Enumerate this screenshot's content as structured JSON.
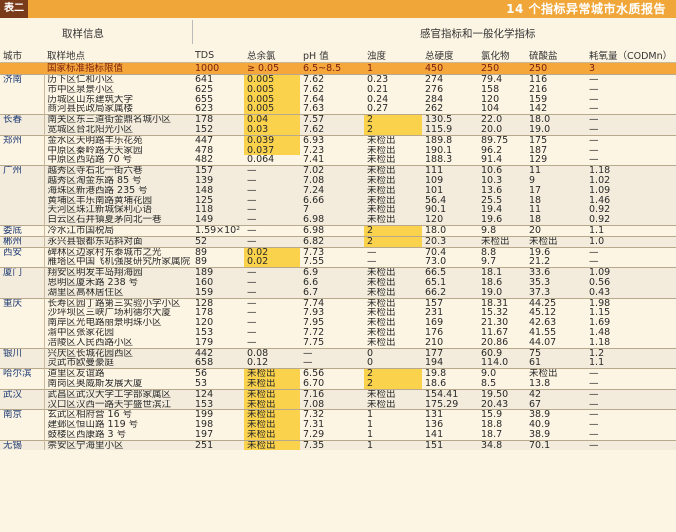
{
  "header": {
    "tag": "表二",
    "title": "14 个指标异常城市水质报告"
  },
  "groups": {
    "sampling": "取样信息",
    "indicators": "感官指标和一般化学指标"
  },
  "columns": [
    "城市",
    "取样地点",
    "TDS",
    "总余氯",
    "pH 值",
    "浊度",
    "总硬度",
    "氯化物",
    "硫酸盐",
    "耗氧量（CODMn）"
  ],
  "standard": [
    "",
    "国家标准指标限值",
    "1000",
    "≥ 0.05",
    "6.5~8.5",
    "1",
    "450",
    "250",
    "250",
    "3"
  ],
  "rows": [
    [
      "济南",
      "历下区仁和小区",
      "641",
      "0.005",
      "7.62",
      "0.23",
      "274",
      "79.4",
      "116",
      "—"
    ],
    [
      "",
      "市中区泉景小区",
      "625",
      "0.005",
      "7.62",
      "0.21",
      "276",
      "158",
      "216",
      "—"
    ],
    [
      "",
      "历城区山东建筑大学",
      "655",
      "0.005",
      "7.64",
      "0.24",
      "284",
      "120",
      "159",
      "—"
    ],
    [
      "",
      "商河县民政局家属楼",
      "623",
      "0.005",
      "7.63",
      "0.27",
      "262",
      "104",
      "142",
      "—"
    ],
    [
      "长春",
      "南关区东三道街金鼎名城小区",
      "178",
      "0.04",
      "7.57",
      "2",
      "130.5",
      "22.0",
      "18.0",
      "—"
    ],
    [
      "",
      "宽城区台北阳光小区",
      "152",
      "0.03",
      "7.62",
      "2",
      "115.9",
      "20.0",
      "19.0",
      "—"
    ],
    [
      "郑州",
      "金水区天明路丰乐花苑",
      "447",
      "0.039",
      "6.93",
      "未检出",
      "189.8",
      "89.75",
      "175",
      "—"
    ],
    [
      "",
      "中原区秦岭路天天家园",
      "478",
      "0.037",
      "7.23",
      "未检出",
      "190.1",
      "96.2",
      "187",
      "—"
    ],
    [
      "",
      "中原区西站路 70 号",
      "482",
      "0.064",
      "7.41",
      "未检出",
      "188.3",
      "91.4",
      "129",
      "—"
    ],
    [
      "广州",
      "越秀区寺右北一街六巷",
      "157",
      "—",
      "7.02",
      "未检出",
      "111",
      "10.6",
      "11",
      "1.18"
    ],
    [
      "",
      "越秀区淘金东路 85 号",
      "139",
      "—",
      "7.08",
      "未检出",
      "109",
      "10.3",
      "9",
      "1.02"
    ],
    [
      "",
      "海珠区新港西路 235 号",
      "148",
      "—",
      "7.24",
      "未检出",
      "101",
      "13.6",
      "17",
      "1.09"
    ],
    [
      "",
      "黄埔区丰乐南路黄埔花园",
      "125",
      "—",
      "6.66",
      "未检出",
      "56.4",
      "25.5",
      "18",
      "1.46"
    ],
    [
      "",
      "天河区珠江新城保利心语",
      "118",
      "—",
      "7",
      "未检出",
      "90.1",
      "19.4",
      "11",
      "0.92"
    ],
    [
      "",
      "白云区石井镇夏茅向北一巷",
      "149",
      "—",
      "6.98",
      "未检出",
      "120",
      "19.6",
      "18",
      "0.92"
    ],
    [
      "娄底",
      "冷水江市国税局",
      "1.59×10²",
      "—",
      "6.98",
      "2",
      "18.0",
      "9.8",
      "20",
      "1.1"
    ],
    [
      "郴州",
      "永兴县银都东站斜对面",
      "52",
      "—",
      "6.82",
      "2",
      "20.3",
      "未检出",
      "未检出",
      "1.0"
    ],
    [
      "西安",
      "碑林区边家村东泰城市之光",
      "89",
      "0.02",
      "7.73",
      "—",
      "70.4",
      "8.8",
      "19.6",
      "—"
    ],
    [
      "",
      "雁塔区中国飞机强度研究所家属院",
      "89",
      "0.02",
      "7.55",
      "—",
      "73.0",
      "9.7",
      "21.2",
      "—"
    ],
    [
      "厦门",
      "翔安区明发丰岛翔海园",
      "189",
      "—",
      "6.9",
      "未检出",
      "66.5",
      "18.1",
      "33.6",
      "1.09"
    ],
    [
      "",
      "思明区厦禾路 238 号",
      "160",
      "—",
      "6.6",
      "未检出",
      "65.1",
      "18.6",
      "35.3",
      "0.56"
    ],
    [
      "",
      "湖里区高林居住区",
      "159",
      "—",
      "6.7",
      "未检出",
      "66.2",
      "19.0",
      "37.3",
      "0.43"
    ],
    [
      "重庆",
      "长寿区园丁路第三实验小学小区",
      "128",
      "—",
      "7.74",
      "未检出",
      "157",
      "18.31",
      "44.25",
      "1.98"
    ],
    [
      "",
      "沙坪坝区三峡广场利德尔大厦",
      "178",
      "—",
      "7.93",
      "未检出",
      "231",
      "15.32",
      "45.12",
      "1.15"
    ],
    [
      "",
      "南岸区光电路丽景明珠小区",
      "120",
      "—",
      "7.95",
      "未检出",
      "169",
      "21.30",
      "42.63",
      "1.69"
    ],
    [
      "",
      "渝中区张家花园",
      "153",
      "—",
      "7.72",
      "未检出",
      "176",
      "11.67",
      "41.55",
      "1.48"
    ],
    [
      "",
      "涪陵区人民西路小区",
      "179",
      "—",
      "7.75",
      "未检出",
      "210",
      "20.86",
      "44.07",
      "1.18"
    ],
    [
      "银川",
      "兴庆区长城花园西区",
      "442",
      "0.08",
      "—",
      "0",
      "177",
      "60.9",
      "75",
      "1.2"
    ],
    [
      "",
      "灵武市欧曼豪庭",
      "658",
      "0.12",
      "—",
      "0",
      "194",
      "114.0",
      "61",
      "1.1"
    ],
    [
      "哈尔滨",
      "道里区友谊路",
      "56",
      "未检出",
      "6.56",
      "2",
      "19.8",
      "9.0",
      "未检出",
      "—"
    ],
    [
      "",
      "南岗区奥威斯发展大厦",
      "53",
      "未检出",
      "6.70",
      "2",
      "18.6",
      "8.5",
      "13.8",
      "—"
    ],
    [
      "武汉",
      "武昌区武汉大学工学部家属区",
      "124",
      "未检出",
      "7.16",
      "未检出",
      "154.41",
      "19.50",
      "42",
      "—"
    ],
    [
      "",
      "汉口区汉西一路天宇盛世滨江",
      "153",
      "未检出",
      "7.08",
      "未检出",
      "175.29",
      "20.43",
      "67",
      "—"
    ],
    [
      "南京",
      "玄武区相府营 16 号",
      "199",
      "未检出",
      "7.32",
      "1",
      "131",
      "15.9",
      "38.9",
      "—"
    ],
    [
      "",
      "建邺区恒山路 119 号",
      "198",
      "未检出",
      "7.31",
      "1",
      "136",
      "18.8",
      "40.9",
      "—"
    ],
    [
      "",
      "鼓楼区西康路 3 号",
      "197",
      "未检出",
      "7.29",
      "1",
      "141",
      "18.7",
      "38.9",
      "—"
    ],
    [
      "无锡",
      "崇安区宁海里小区",
      "251",
      "未检出",
      "7.35",
      "1",
      "151",
      "34.8",
      "70.1",
      "—"
    ]
  ],
  "highlight_color": "#fbd24c",
  "standard_color": "#f5a73b"
}
